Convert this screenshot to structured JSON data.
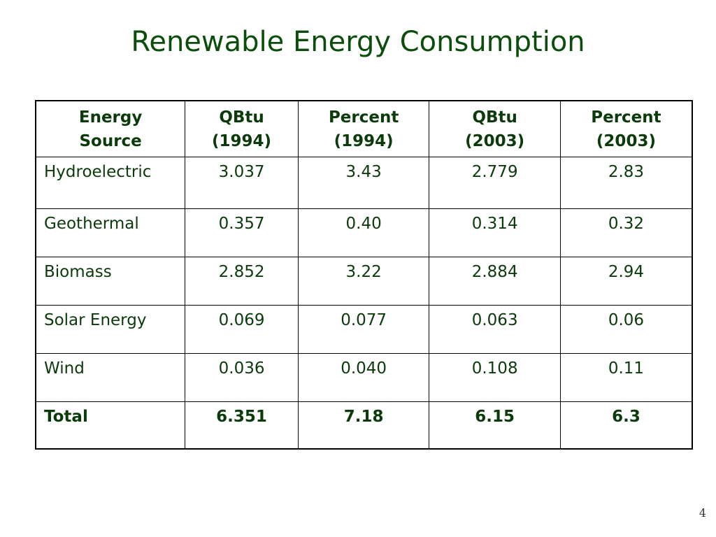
{
  "slide": {
    "title": "Renewable Energy Consumption",
    "page_number": "4",
    "colors": {
      "title": "#0b4d0b",
      "table_text": "#0b3a0b",
      "border": "#000000",
      "background": "#ffffff"
    }
  },
  "table": {
    "headers": [
      {
        "line1": "Energy",
        "line2": "Source"
      },
      {
        "line1": "QBtu",
        "line2": "(1994)"
      },
      {
        "line1": "Percent",
        "line2": "(1994)"
      },
      {
        "line1": "QBtu",
        "line2": "(2003)"
      },
      {
        "line1": "Percent",
        "line2": "(2003)"
      }
    ],
    "rows": [
      {
        "source": "Hydroelectric",
        "qbtu_1994": "3.037",
        "pct_1994": "3.43",
        "qbtu_2003": "2.779",
        "pct_2003": "2.83"
      },
      {
        "source": "Geothermal",
        "qbtu_1994": "0.357",
        "pct_1994": "0.40",
        "qbtu_2003": "0.314",
        "pct_2003": "0.32"
      },
      {
        "source": "Biomass",
        "qbtu_1994": "2.852",
        "pct_1994": "3.22",
        "qbtu_2003": "2.884",
        "pct_2003": "2.94"
      },
      {
        "source": "Solar Energy",
        "qbtu_1994": "0.069",
        "pct_1994": "0.077",
        "qbtu_2003": "0.063",
        "pct_2003": "0.06"
      },
      {
        "source": "Wind",
        "qbtu_1994": "0.036",
        "pct_1994": "0.040",
        "qbtu_2003": "0.108",
        "pct_2003": "0.11"
      }
    ],
    "total": {
      "source": "Total",
      "qbtu_1994": "6.351",
      "pct_1994": "7.18",
      "qbtu_2003": "6.15",
      "pct_2003": "6.3"
    }
  }
}
